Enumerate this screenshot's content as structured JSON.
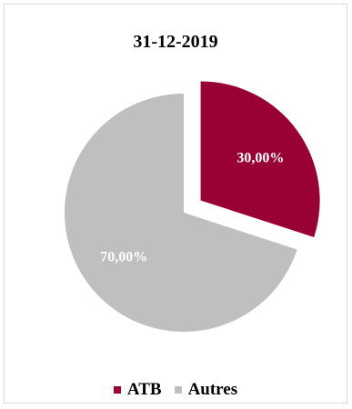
{
  "chart_data": {
    "type": "pie",
    "title": "31-12-2019",
    "categories": [
      "ATB",
      "Autres"
    ],
    "values": [
      30.0,
      70.0
    ],
    "labels": [
      "30,00%",
      "70,00%"
    ],
    "colors": [
      "#990033",
      "#bfbfbf"
    ],
    "exploded": [
      "ATB"
    ],
    "legend_position": "bottom"
  }
}
